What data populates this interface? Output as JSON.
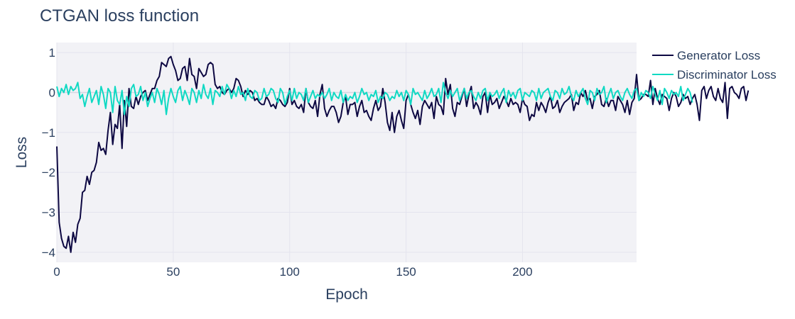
{
  "chart_data": {
    "type": "line",
    "title": "CTGAN loss function",
    "xlabel": "Epoch",
    "ylabel": "Loss",
    "xlim": [
      0,
      249
    ],
    "ylim": [
      -4.25,
      1.25
    ],
    "x_ticks": [
      0,
      50,
      100,
      150,
      200
    ],
    "y_ticks": [
      1,
      0,
      -1,
      -2,
      -3,
      -4
    ],
    "y_tick_labels": [
      "1",
      "0",
      "−1",
      "−2",
      "−3",
      "−4"
    ],
    "grid": true,
    "legend_position": "top-right",
    "x_start": 0,
    "x_step": 1,
    "series": [
      {
        "name": "Generator Loss",
        "color": "#0d0842",
        "values": [
          -1.35,
          -3.25,
          -3.65,
          -3.85,
          -3.9,
          -3.6,
          -4.0,
          -3.5,
          -3.75,
          -3.3,
          -3.15,
          -2.5,
          -2.45,
          -2.1,
          -2.3,
          -2.0,
          -1.95,
          -1.75,
          -1.25,
          -1.45,
          -1.4,
          -1.55,
          -0.95,
          -0.5,
          -1.3,
          -0.8,
          -0.9,
          -0.3,
          -1.4,
          -0.2,
          -0.85,
          0.1,
          -0.35,
          -0.4,
          -0.1,
          -0.3,
          -0.1,
          0.0,
          0.05,
          -0.2,
          -0.05,
          0.1,
          0.1,
          0.3,
          0.4,
          0.75,
          0.7,
          0.65,
          0.85,
          0.9,
          0.7,
          0.55,
          0.3,
          0.35,
          0.6,
          0.65,
          0.3,
          0.85,
          0.45,
          0.4,
          0.1,
          0.6,
          0.5,
          0.4,
          0.45,
          0.7,
          0.75,
          0.7,
          0.2,
          0.1,
          0.15,
          0.0,
          -0.05,
          0.05,
          0.1,
          0.0,
          0.1,
          0.35,
          0.3,
          0.15,
          -0.1,
          0.05,
          -0.05,
          0.05,
          0.0,
          -0.2,
          -0.15,
          -0.25,
          -0.3,
          -0.3,
          -0.1,
          -0.2,
          -0.35,
          -0.3,
          -0.4,
          -0.15,
          -0.2,
          -0.3,
          -0.35,
          -0.25,
          0.1,
          -0.3,
          -0.2,
          -0.35,
          -0.4,
          -0.3,
          -0.5,
          0.1,
          -0.25,
          -0.35,
          -0.4,
          -0.2,
          -0.6,
          -0.05,
          0.2,
          -0.4,
          -0.6,
          -0.45,
          -0.35,
          -0.35,
          -0.5,
          -0.75,
          -0.6,
          -0.25,
          -0.1,
          -0.55,
          -0.3,
          -0.3,
          -0.25,
          -0.6,
          -0.35,
          -0.2,
          -0.5,
          -0.45,
          -0.6,
          -0.7,
          -0.4,
          -0.2,
          -0.45,
          -0.35,
          0.1,
          -0.25,
          -0.75,
          -0.95,
          -0.5,
          -1.0,
          -0.6,
          -0.45,
          -0.7,
          -0.9,
          -0.2,
          -0.05,
          -0.3,
          -0.5,
          -0.65,
          -0.45,
          -0.8,
          -0.35,
          -0.2,
          -0.3,
          -0.4,
          -0.25,
          -0.65,
          -0.1,
          -0.3,
          -0.35,
          -0.55,
          0.35,
          -0.05,
          0.2,
          -0.4,
          -0.6,
          -0.25,
          -0.3,
          -0.1,
          0.1,
          -0.35,
          -0.05,
          0.15,
          -0.4,
          -0.25,
          -0.35,
          -0.55,
          -0.1,
          0.0,
          -0.5,
          -0.05,
          -0.3,
          -0.25,
          -0.15,
          -0.4,
          -0.25,
          -0.1,
          -0.2,
          -0.35,
          -0.15,
          -0.3,
          -0.25,
          -0.3,
          -0.5,
          -0.15,
          -0.3,
          -0.35,
          -0.7,
          -0.55,
          -0.6,
          -0.25,
          -0.45,
          -0.25,
          -0.35,
          -0.5,
          -0.25,
          -0.1,
          -0.4,
          -0.35,
          -0.2,
          -0.5,
          -0.35,
          -0.25,
          -0.2,
          -0.15,
          -0.05,
          -0.45,
          -0.25,
          -0.3,
          0.0,
          -0.1,
          0.05,
          -0.2,
          -0.15,
          -0.4,
          -0.1,
          -0.05,
          0.05,
          -0.3,
          -0.35,
          -0.15,
          -0.35,
          -0.2,
          -0.2,
          -0.45,
          -0.1,
          -0.2,
          -0.3,
          -0.5,
          -0.2,
          -0.55,
          -0.25,
          -0.15,
          0.45,
          -0.2,
          -0.15,
          -0.05,
          -0.05,
          -0.1,
          0.3,
          -0.3,
          0.1,
          -0.15,
          -0.3,
          -0.05,
          -0.1,
          -0.15,
          -0.45,
          -0.15,
          0.0,
          -0.1,
          -0.35,
          -0.25,
          -0.05,
          -0.15,
          -0.1,
          -0.3,
          -0.15,
          -0.05,
          -0.3,
          -0.7,
          0.05,
          0.15,
          -0.15,
          0.05,
          0.15,
          -0.1,
          -0.2,
          0.1,
          -0.15,
          -0.25,
          0.25,
          -0.65,
          0.1,
          0.15,
          0.0,
          -0.05,
          -0.15,
          0.1,
          0.15,
          -0.2,
          0.05
        ]
      },
      {
        "name": "Discriminator Loss",
        "color": "#10d9c3",
        "values": [
          0.15,
          -0.1,
          0.1,
          0.0,
          0.2,
          -0.05,
          0.15,
          0.05,
          0.1,
          0.25,
          -0.15,
          -0.05,
          -0.35,
          -0.1,
          0.1,
          -0.25,
          -0.1,
          0.05,
          -0.3,
          0.15,
          -0.05,
          -0.4,
          0.1,
          0.0,
          -0.5,
          0.15,
          -0.2,
          -0.3,
          0.05,
          -0.55,
          -0.1,
          -0.35,
          0.1,
          0.2,
          -0.1,
          -0.05,
          0.15,
          -0.2,
          0.0,
          -0.35,
          -0.15,
          0.0,
          -0.25,
          0.1,
          -0.05,
          -0.3,
          0.05,
          -0.55,
          -0.15,
          0.1,
          -0.1,
          -0.25,
          0.05,
          0.15,
          -0.2,
          0.05,
          -0.1,
          -0.3,
          0.1,
          0.0,
          -0.25,
          0.05,
          -0.15,
          0.2,
          -0.05,
          -0.15,
          0.1,
          -0.3,
          0.05,
          0.0,
          -0.1,
          0.15,
          -0.05,
          0.2,
          0.1,
          -0.15,
          0.05,
          -0.1,
          0.15,
          -0.05,
          0.0,
          -0.2,
          0.1,
          -0.1,
          -0.15,
          0.05,
          0.0,
          -0.2,
          -0.15,
          0.1,
          -0.1,
          -0.05,
          0.1,
          0.05,
          -0.15,
          -0.25,
          0.1,
          0.0,
          -0.3,
          -0.1,
          0.05,
          -0.2,
          0.1,
          -0.15,
          0.0,
          -0.05,
          -0.2,
          0.1,
          -0.25,
          -0.1,
          0.05,
          -0.15,
          -0.05,
          -0.1,
          0.0,
          -0.15,
          -0.05,
          0.1,
          -0.2,
          0.0,
          -0.1,
          -0.15,
          0.05,
          -0.25,
          -0.05,
          -0.2,
          -0.1,
          -0.15,
          0.0,
          -0.25,
          -0.1,
          0.1,
          -0.05,
          0.0,
          -0.2,
          -0.05,
          -0.1,
          0.05,
          -0.25,
          -0.1,
          -0.15,
          0.0,
          -0.05,
          -0.2,
          -0.1,
          -0.15,
          0.05,
          -0.1,
          0.0,
          -0.2,
          0.05,
          -0.05,
          -0.3,
          0.1,
          -0.05,
          0.0,
          -0.1,
          -0.2,
          0.05,
          -0.15,
          -0.05,
          0.1,
          -0.1,
          -0.05,
          0.1,
          -0.25,
          0.25,
          0.0,
          -0.15,
          0.05,
          -0.1,
          0.0,
          0.1,
          -0.2,
          -0.05,
          0.1,
          -0.15,
          0.0,
          0.05,
          -0.1,
          -0.2,
          0.0,
          -0.15,
          0.05,
          0.1,
          -0.2,
          0.0,
          -0.1,
          -0.05,
          0.05,
          -0.15,
          0.0,
          0.1,
          -0.25,
          0.05,
          -0.1,
          0.0,
          -0.15,
          0.05,
          0.1,
          -0.2,
          0.0,
          -0.05,
          -0.1,
          0.05,
          0.0,
          -0.2,
          0.1,
          -0.15,
          0.0,
          0.05,
          0.1,
          -0.1,
          -0.2,
          0.05,
          0.0,
          -0.15,
          0.1,
          -0.05,
          0.0,
          0.15,
          -0.1,
          -0.2,
          0.05,
          -0.1,
          0.0,
          0.1,
          -0.15,
          -0.3,
          0.05,
          0.0,
          -0.2,
          0.1,
          -0.05,
          0.0,
          0.15,
          -0.25,
          -0.05,
          0.1,
          -0.15,
          0.0,
          0.05,
          -0.1,
          -0.2,
          0.0,
          0.1,
          -0.05,
          -0.15,
          0.05,
          0.1,
          -0.2,
          0.0,
          -0.1,
          0.05,
          0.0,
          -0.15,
          0.15,
          -0.05,
          -0.2,
          0.05,
          -0.3,
          0.1,
          0.0,
          -0.15,
          0.05,
          -0.05,
          0.0,
          -0.1,
          0.15,
          -0.2,
          -0.05,
          0.1,
          0.0,
          -0.25
        ]
      }
    ]
  }
}
